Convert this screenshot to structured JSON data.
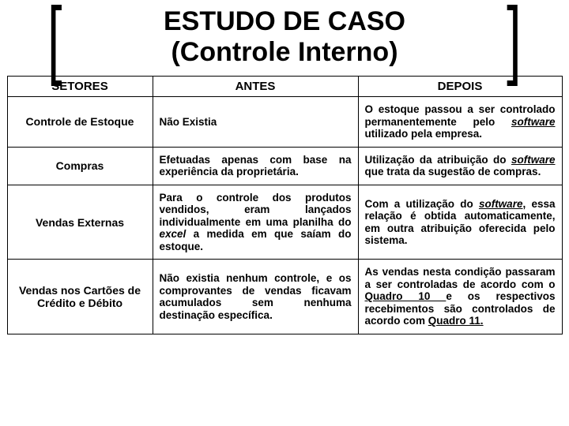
{
  "title_line1": "ESTUDO DE CASO",
  "title_line2": "(Controle Interno)",
  "headers": {
    "c0": "SETORES",
    "c1": "ANTES",
    "c2": "DEPOIS"
  },
  "rows": [
    {
      "sector": "Controle de Estoque",
      "before_html": "Não Existia",
      "after_html": "O estoque passou a ser controlado permanentemente pelo <u><span class=\"it\">software</span></u> utilizado pela empresa."
    },
    {
      "sector": "Compras",
      "before_html": "Efetuadas apenas com base na experiência da proprietária.",
      "after_html": "Utilização da atribuição do <u><span class=\"it\">software</span></u> que trata da sugestão de compras."
    },
    {
      "sector": "Vendas Externas",
      "before_html": "Para o controle dos produtos vendidos, eram lançados individualmente em uma planilha do <span class=\"it\">excel</span> a medida em que saíam do estoque.",
      "after_html": "Com a utilização do <u><span class=\"it\">software</span></u>, essa relação é obtida automaticamente, em outra atribuição oferecida pelo sistema."
    },
    {
      "sector": "Vendas nos Cartões de Crédito e Débito",
      "before_html": "Não existia nenhum controle, e os comprovantes de vendas ficavam acumulados sem nenhuma destinação específica.",
      "after_html": "As vendas nesta condição passaram a ser controladas de acordo com o <u>Quadro 10 </u>e os respectivos recebimentos são controlados de acordo com <u>Quadro 11.</u>"
    }
  ],
  "colors": {
    "text": "#000000",
    "bg": "#ffffff",
    "border": "#000000"
  }
}
